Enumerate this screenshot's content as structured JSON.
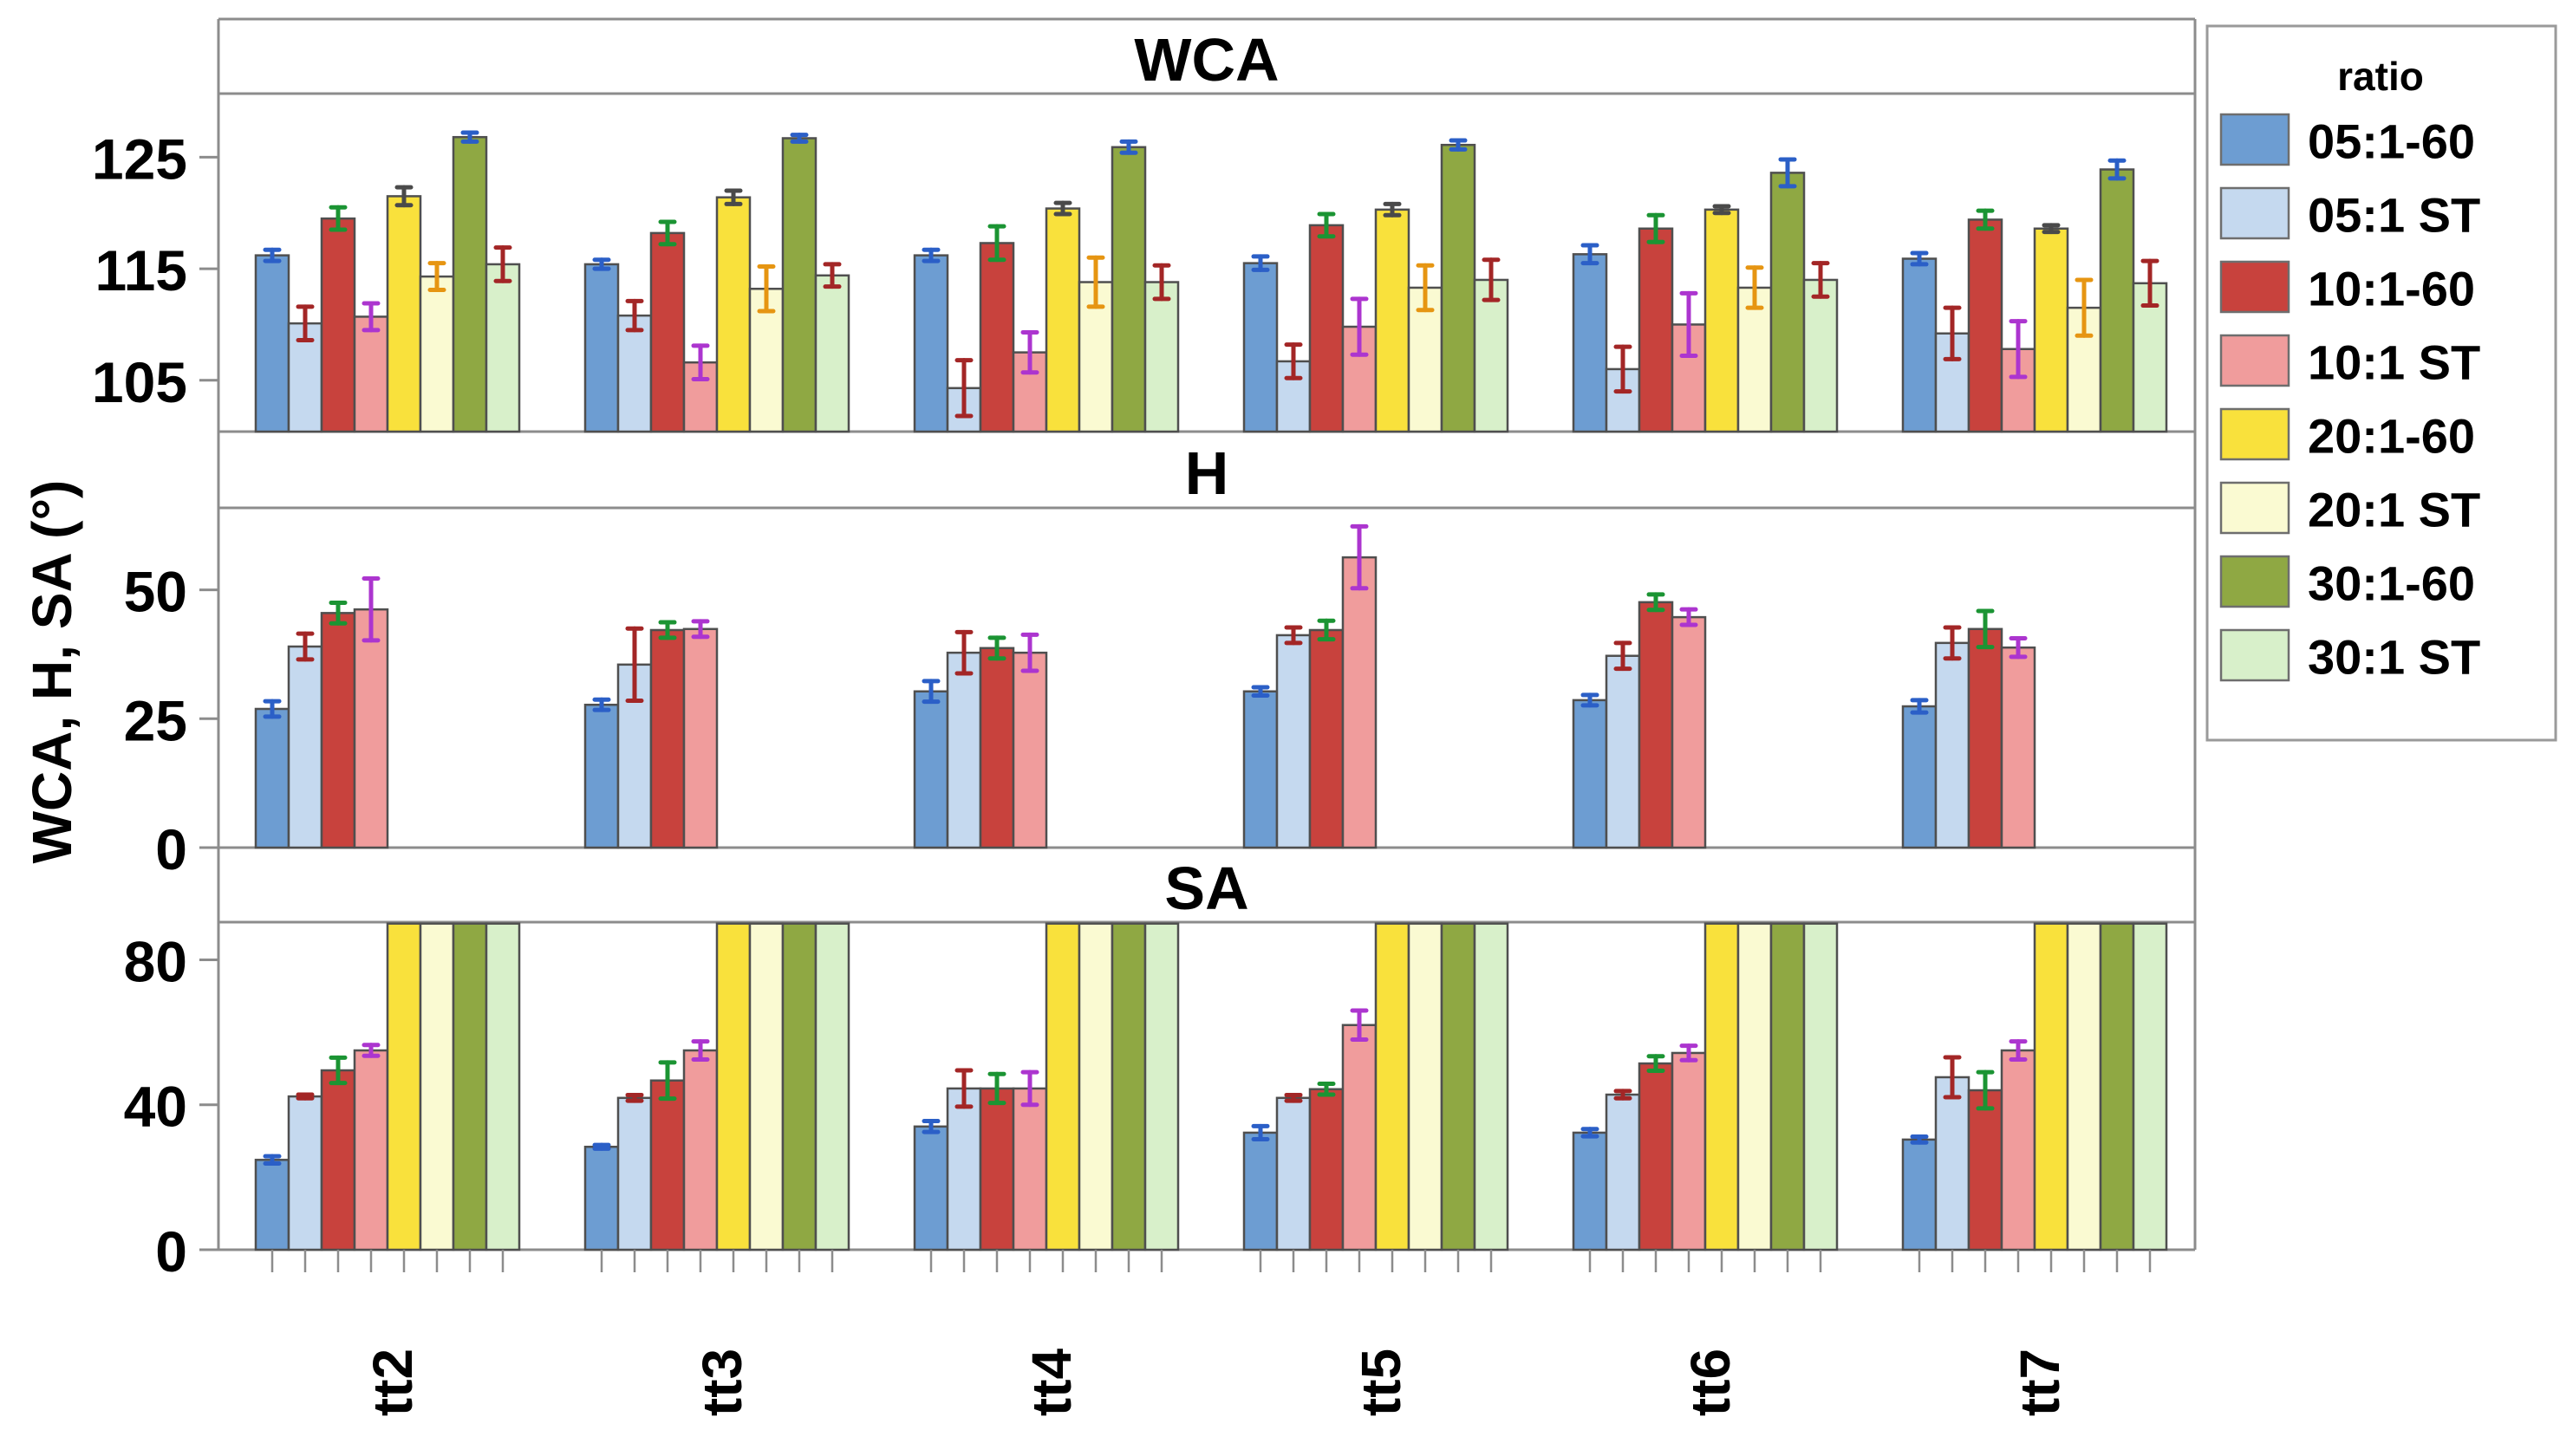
{
  "chart_data": {
    "type": "bar",
    "title": "",
    "ylabel": "WCA, H, SA (°)",
    "legend_title": "ratio",
    "legend_position": "right",
    "grid": false,
    "categories": [
      "tt2",
      "tt3",
      "tt4",
      "tt5",
      "tt6",
      "tt7"
    ],
    "ratios": [
      {
        "label": "05:1-60",
        "color": "#6D9DD2",
        "err_color": "#2B5FC7"
      },
      {
        "label": "05:1 ST",
        "color": "#C5D9EF",
        "err_color": "#A32626"
      },
      {
        "label": "10:1-60",
        "color": "#C8423D",
        "err_color": "#1B9433"
      },
      {
        "label": "10:1 ST",
        "color": "#F09C9C",
        "err_color": "#AC35CF"
      },
      {
        "label": "20:1-60",
        "color": "#F9E13C",
        "err_color": "#4A4A4A"
      },
      {
        "label": "20:1 ST",
        "color": "#FAFAD2",
        "err_color": "#E69512"
      },
      {
        "label": "30:1-60",
        "color": "#8FA843",
        "err_color": "#2B5FC7"
      },
      {
        "label": "30:1 ST",
        "color": "#D8F0CA",
        "err_color": "#A32626"
      }
    ],
    "panels": [
      {
        "title": "WCA",
        "ylim": [
          100.4,
          130.7
        ],
        "yticks": [
          105,
          115,
          125
        ],
        "series": [
          {
            "name": "05:1-60",
            "values": [
              116.2,
              115.4,
              116.2,
              115.5,
              116.3,
              115.9
            ],
            "err": [
              0.5,
              0.4,
              0.5,
              0.6,
              0.8,
              0.5
            ]
          },
          {
            "name": "05:1 ST",
            "values": [
              110.1,
              110.8,
              104.3,
              106.7,
              106.0,
              109.2
            ],
            "err": [
              1.5,
              1.3,
              2.5,
              1.5,
              2.0,
              2.3
            ]
          },
          {
            "name": "10:1-60",
            "values": [
              119.5,
              118.2,
              117.3,
              118.9,
              118.6,
              119.4
            ],
            "err": [
              1.0,
              1.0,
              1.5,
              1.0,
              1.2,
              0.8
            ]
          },
          {
            "name": "10:1 ST",
            "values": [
              110.7,
              106.6,
              107.5,
              109.8,
              110.0,
              107.8
            ],
            "err": [
              1.2,
              1.5,
              1.8,
              2.5,
              2.8,
              2.5
            ]
          },
          {
            "name": "20:1-60",
            "values": [
              121.5,
              121.4,
              120.4,
              120.3,
              120.3,
              118.6
            ],
            "err": [
              0.8,
              0.6,
              0.5,
              0.5,
              0.3,
              0.3
            ]
          },
          {
            "name": "20:1 ST",
            "values": [
              114.3,
              113.2,
              113.8,
              113.3,
              113.3,
              111.5
            ],
            "err": [
              1.2,
              2.0,
              2.2,
              2.0,
              1.8,
              2.5
            ]
          },
          {
            "name": "30:1-60",
            "values": [
              126.8,
              126.7,
              125.9,
              126.1,
              123.6,
              123.9
            ],
            "err": [
              0.4,
              0.3,
              0.5,
              0.4,
              1.2,
              0.8
            ]
          },
          {
            "name": "30:1 ST",
            "values": [
              115.4,
              114.4,
              113.8,
              114.0,
              114.0,
              113.7
            ],
            "err": [
              1.5,
              1.0,
              1.5,
              1.8,
              1.5,
              2.0
            ]
          }
        ]
      },
      {
        "title": "H",
        "ylim": [
          0,
          65.9
        ],
        "yticks": [
          0,
          25,
          50
        ],
        "series": [
          {
            "name": "05:1-60",
            "values": [
              26.9,
              27.7,
              30.3,
              30.3,
              28.6,
              27.4
            ],
            "err": [
              1.5,
              1.0,
              2.0,
              0.8,
              1.0,
              1.2
            ]
          },
          {
            "name": "05:1 ST",
            "values": [
              39.0,
              35.5,
              37.8,
              41.2,
              37.2,
              39.7
            ],
            "err": [
              2.5,
              7.0,
              4.0,
              1.5,
              2.5,
              3.0
            ]
          },
          {
            "name": "10:1-60",
            "values": [
              45.5,
              42.2,
              38.7,
              42.2,
              47.6,
              42.4
            ],
            "err": [
              2.0,
              1.5,
              2.0,
              1.8,
              1.5,
              3.5
            ]
          },
          {
            "name": "10:1 ST",
            "values": [
              46.2,
              42.4,
              37.8,
              56.3,
              44.7,
              38.8
            ],
            "err": [
              6.0,
              1.5,
              3.5,
              6.0,
              1.5,
              1.8
            ]
          },
          {
            "name": "20:1-60",
            "values": [
              null,
              null,
              null,
              null,
              null,
              null
            ],
            "err": null
          },
          {
            "name": "20:1 ST",
            "values": [
              null,
              null,
              null,
              null,
              null,
              null
            ],
            "err": null
          },
          {
            "name": "30:1-60",
            "values": [
              null,
              null,
              null,
              null,
              null,
              null
            ],
            "err": null
          },
          {
            "name": "30:1 ST",
            "values": [
              null,
              null,
              null,
              null,
              null,
              null
            ],
            "err": null
          }
        ]
      },
      {
        "title": "SA",
        "ylim": [
          0,
          90.4
        ],
        "yticks": [
          0,
          40,
          80
        ],
        "clip_value": 90,
        "series": [
          {
            "name": "05:1-60",
            "values": [
              24.8,
              28.4,
              34.0,
              32.3,
              32.3,
              30.4
            ],
            "err": [
              1.0,
              0.5,
              1.5,
              1.8,
              1.0,
              0.8
            ]
          },
          {
            "name": "05:1 ST",
            "values": [
              42.3,
              41.9,
              44.5,
              41.9,
              42.8,
              47.6
            ],
            "err": [
              0.5,
              0.8,
              5.0,
              0.8,
              1.0,
              5.5
            ]
          },
          {
            "name": "10:1-60",
            "values": [
              49.5,
              46.7,
              44.5,
              44.3,
              51.4,
              44.0
            ],
            "err": [
              3.5,
              5.0,
              4.0,
              1.5,
              2.0,
              5.0
            ]
          },
          {
            "name": "10:1 ST",
            "values": [
              55.0,
              55.0,
              44.5,
              62.0,
              54.3,
              55.0
            ],
            "err": [
              1.5,
              2.5,
              4.5,
              4.0,
              2.0,
              2.5
            ]
          },
          {
            "name": "20:1-60",
            "values": [
              90,
              90,
              90,
              90,
              90,
              90
            ],
            "err": null
          },
          {
            "name": "20:1 ST",
            "values": [
              90,
              90,
              90,
              90,
              90,
              90
            ],
            "err": null
          },
          {
            "name": "30:1-60",
            "values": [
              90,
              90,
              90,
              90,
              90,
              90
            ],
            "err": null
          },
          {
            "name": "30:1 ST",
            "values": [
              90,
              90,
              90,
              90,
              90,
              90
            ],
            "err": null
          }
        ]
      }
    ]
  }
}
